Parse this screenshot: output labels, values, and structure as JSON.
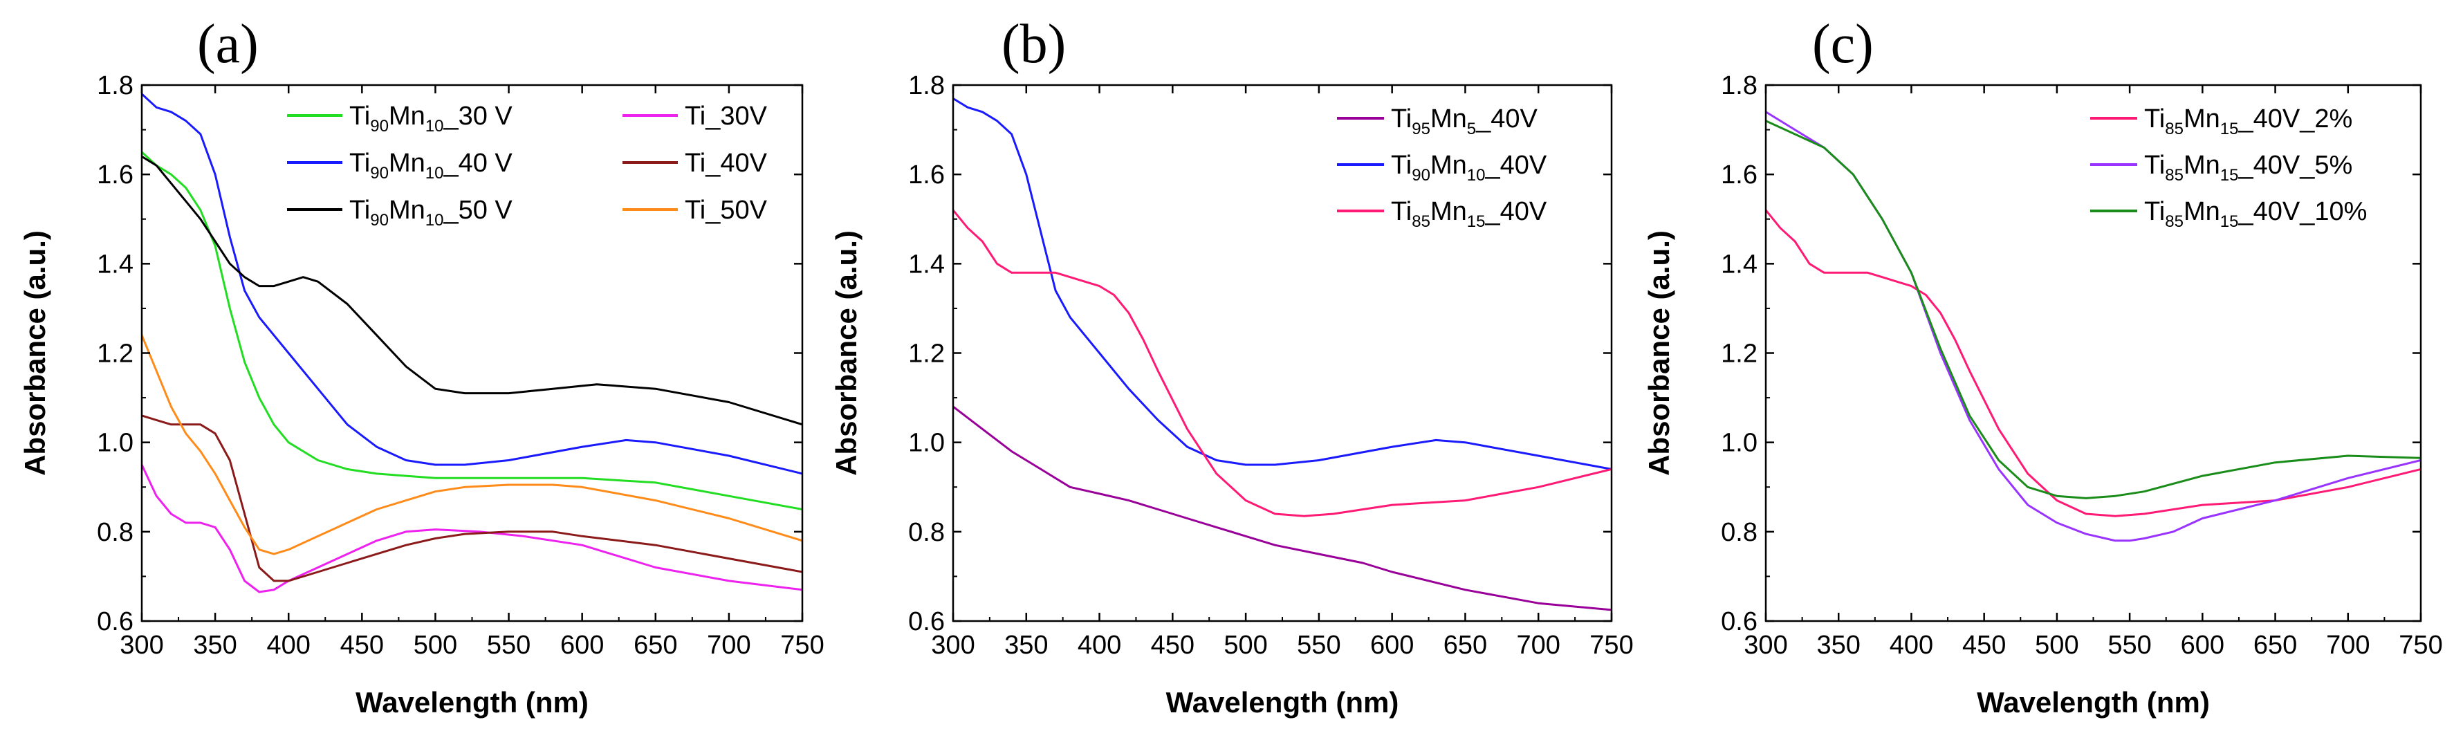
{
  "chart_data": [
    {
      "type": "line",
      "panel_label": "(a)",
      "xlabel": "Wavelength (nm)",
      "ylabel": "Absorbance (a.u.)",
      "xlim": [
        300,
        750
      ],
      "ylim": [
        0.6,
        1.8
      ],
      "xticks": [
        "300",
        "350",
        "400",
        "450",
        "500",
        "550",
        "600",
        "650",
        "700",
        "750"
      ],
      "yticks": [
        "0.6",
        "0.8",
        "1.0",
        "1.2",
        "1.4",
        "1.6",
        "1.8"
      ],
      "legend_position": "top-right, two columns",
      "series": [
        {
          "name": "Ti90Mn10_30 V",
          "legend": [
            [
              "Ti",
              ""
            ],
            [
              "90",
              "sub"
            ],
            [
              "Mn",
              ""
            ],
            [
              "10",
              "sub"
            ],
            [
              "_30 V",
              ""
            ]
          ],
          "color": "#22dd22",
          "x": [
            300,
            310,
            320,
            330,
            340,
            350,
            360,
            370,
            380,
            390,
            400,
            420,
            440,
            460,
            480,
            500,
            550,
            600,
            650,
            700,
            750
          ],
          "y": [
            1.65,
            1.62,
            1.6,
            1.57,
            1.52,
            1.44,
            1.3,
            1.18,
            1.1,
            1.04,
            1.0,
            0.96,
            0.94,
            0.93,
            0.925,
            0.92,
            0.92,
            0.92,
            0.91,
            0.88,
            0.85
          ]
        },
        {
          "name": "Ti90Mn10_40 V",
          "legend": [
            [
              "Ti",
              ""
            ],
            [
              "90",
              "sub"
            ],
            [
              "Mn",
              ""
            ],
            [
              "10",
              "sub"
            ],
            [
              "_40 V",
              ""
            ]
          ],
          "color": "#1a1aff",
          "x": [
            300,
            310,
            320,
            330,
            340,
            350,
            360,
            370,
            380,
            390,
            400,
            420,
            440,
            460,
            480,
            500,
            520,
            550,
            600,
            630,
            650,
            700,
            750
          ],
          "y": [
            1.78,
            1.75,
            1.74,
            1.72,
            1.69,
            1.6,
            1.46,
            1.34,
            1.28,
            1.24,
            1.2,
            1.12,
            1.04,
            0.99,
            0.96,
            0.95,
            0.95,
            0.96,
            0.99,
            1.005,
            1.0,
            0.97,
            0.93
          ]
        },
        {
          "name": "Ti90Mn10_50 V",
          "legend": [
            [
              "Ti",
              ""
            ],
            [
              "90",
              "sub"
            ],
            [
              "Mn",
              ""
            ],
            [
              "10",
              "sub"
            ],
            [
              "_50 V",
              ""
            ]
          ],
          "color": "#000000",
          "x": [
            300,
            310,
            320,
            330,
            340,
            350,
            360,
            370,
            380,
            390,
            400,
            410,
            420,
            440,
            460,
            480,
            500,
            520,
            550,
            580,
            610,
            650,
            700,
            750
          ],
          "y": [
            1.64,
            1.62,
            1.58,
            1.54,
            1.5,
            1.45,
            1.4,
            1.37,
            1.35,
            1.35,
            1.36,
            1.37,
            1.36,
            1.31,
            1.24,
            1.17,
            1.12,
            1.11,
            1.11,
            1.12,
            1.13,
            1.12,
            1.09,
            1.04
          ]
        },
        {
          "name": "Ti_30V",
          "legend": [
            [
              "Ti_30V",
              ""
            ]
          ],
          "color": "#ee22ee",
          "x": [
            300,
            310,
            320,
            330,
            340,
            350,
            360,
            370,
            380,
            390,
            400,
            420,
            440,
            460,
            480,
            500,
            530,
            560,
            600,
            650,
            700,
            750
          ],
          "y": [
            0.95,
            0.88,
            0.84,
            0.82,
            0.82,
            0.81,
            0.76,
            0.69,
            0.665,
            0.67,
            0.69,
            0.72,
            0.75,
            0.78,
            0.8,
            0.805,
            0.8,
            0.79,
            0.77,
            0.72,
            0.69,
            0.67
          ]
        },
        {
          "name": "Ti_40V",
          "legend": [
            [
              "Ti_40V",
              ""
            ]
          ],
          "color": "#8b1a1a",
          "x": [
            300,
            310,
            320,
            330,
            340,
            350,
            360,
            370,
            380,
            390,
            400,
            420,
            440,
            460,
            480,
            500,
            520,
            550,
            580,
            600,
            650,
            700,
            750
          ],
          "y": [
            1.06,
            1.05,
            1.04,
            1.04,
            1.04,
            1.02,
            0.96,
            0.84,
            0.72,
            0.69,
            0.69,
            0.71,
            0.73,
            0.75,
            0.77,
            0.785,
            0.795,
            0.8,
            0.8,
            0.79,
            0.77,
            0.74,
            0.71
          ]
        },
        {
          "name": "Ti_50V",
          "legend": [
            [
              "Ti_50V",
              ""
            ]
          ],
          "color": "#ff8c1a",
          "x": [
            300,
            310,
            320,
            330,
            340,
            350,
            360,
            370,
            380,
            390,
            400,
            420,
            440,
            460,
            480,
            500,
            520,
            550,
            580,
            600,
            650,
            700,
            750
          ],
          "y": [
            1.24,
            1.16,
            1.08,
            1.02,
            0.98,
            0.93,
            0.87,
            0.81,
            0.76,
            0.75,
            0.76,
            0.79,
            0.82,
            0.85,
            0.87,
            0.89,
            0.9,
            0.905,
            0.905,
            0.9,
            0.87,
            0.83,
            0.78
          ]
        }
      ]
    },
    {
      "type": "line",
      "panel_label": "(b)",
      "xlabel": "Wavelength (nm)",
      "ylabel": "Absorbance (a.u.)",
      "xlim": [
        300,
        750
      ],
      "ylim": [
        0.6,
        1.8
      ],
      "xticks": [
        "300",
        "350",
        "400",
        "450",
        "500",
        "550",
        "600",
        "650",
        "700",
        "750"
      ],
      "yticks": [
        "0.6",
        "0.8",
        "1.0",
        "1.2",
        "1.4",
        "1.6",
        "1.8"
      ],
      "legend_position": "top-right",
      "series": [
        {
          "name": "Ti95Mn5_40V",
          "legend": [
            [
              "Ti",
              ""
            ],
            [
              "95",
              "sub"
            ],
            [
              "Mn",
              ""
            ],
            [
              "5",
              "sub"
            ],
            [
              "_40V",
              ""
            ]
          ],
          "color": "#990099",
          "x": [
            300,
            320,
            340,
            360,
            380,
            400,
            420,
            440,
            460,
            480,
            500,
            520,
            550,
            580,
            600,
            650,
            700,
            750
          ],
          "y": [
            1.08,
            1.03,
            0.98,
            0.94,
            0.9,
            0.885,
            0.87,
            0.85,
            0.83,
            0.81,
            0.79,
            0.77,
            0.75,
            0.73,
            0.71,
            0.67,
            0.64,
            0.625
          ]
        },
        {
          "name": "Ti90Mn10_40V",
          "legend": [
            [
              "Ti",
              ""
            ],
            [
              "90",
              "sub"
            ],
            [
              "Mn",
              ""
            ],
            [
              "10",
              "sub"
            ],
            [
              "_40V",
              ""
            ]
          ],
          "color": "#1a1aff",
          "x": [
            300,
            310,
            320,
            330,
            340,
            350,
            360,
            370,
            380,
            390,
            400,
            420,
            440,
            460,
            480,
            500,
            520,
            550,
            600,
            630,
            650,
            700,
            750
          ],
          "y": [
            1.77,
            1.75,
            1.74,
            1.72,
            1.69,
            1.6,
            1.47,
            1.34,
            1.28,
            1.24,
            1.2,
            1.12,
            1.05,
            0.99,
            0.96,
            0.95,
            0.95,
            0.96,
            0.99,
            1.005,
            1.0,
            0.97,
            0.94
          ]
        },
        {
          "name": "Ti85Mn15_40V",
          "legend": [
            [
              "Ti",
              ""
            ],
            [
              "85",
              "sub"
            ],
            [
              "Mn",
              ""
            ],
            [
              "15",
              "sub"
            ],
            [
              "_40V",
              ""
            ]
          ],
          "color": "#ff1a75",
          "x": [
            300,
            310,
            320,
            330,
            340,
            350,
            360,
            370,
            380,
            390,
            400,
            410,
            420,
            430,
            440,
            460,
            480,
            500,
            520,
            540,
            560,
            600,
            650,
            700,
            750
          ],
          "y": [
            1.52,
            1.48,
            1.45,
            1.4,
            1.38,
            1.38,
            1.38,
            1.38,
            1.37,
            1.36,
            1.35,
            1.33,
            1.29,
            1.23,
            1.16,
            1.03,
            0.93,
            0.87,
            0.84,
            0.835,
            0.84,
            0.86,
            0.87,
            0.9,
            0.94
          ]
        }
      ]
    },
    {
      "type": "line",
      "panel_label": "(c)",
      "xlabel": "Wavelength (nm)",
      "ylabel": "Absorbance (a.u.)",
      "xlim": [
        300,
        750
      ],
      "ylim": [
        0.6,
        1.8
      ],
      "xticks": [
        "300",
        "350",
        "400",
        "450",
        "500",
        "550",
        "600",
        "650",
        "700",
        "750"
      ],
      "yticks": [
        "0.6",
        "0.8",
        "1.0",
        "1.2",
        "1.4",
        "1.6",
        "1.8"
      ],
      "legend_position": "top-right",
      "series": [
        {
          "name": "Ti85Mn15_40V_2%",
          "legend": [
            [
              "Ti",
              ""
            ],
            [
              "85",
              "sub"
            ],
            [
              "Mn",
              ""
            ],
            [
              "15",
              "sub"
            ],
            [
              "_40V_2%",
              ""
            ]
          ],
          "color": "#ff1a75",
          "x": [
            300,
            310,
            320,
            330,
            340,
            350,
            360,
            370,
            380,
            390,
            400,
            410,
            420,
            430,
            440,
            460,
            480,
            500,
            520,
            540,
            560,
            600,
            650,
            700,
            750
          ],
          "y": [
            1.52,
            1.48,
            1.45,
            1.4,
            1.38,
            1.38,
            1.38,
            1.38,
            1.37,
            1.36,
            1.35,
            1.33,
            1.29,
            1.23,
            1.16,
            1.03,
            0.93,
            0.87,
            0.84,
            0.835,
            0.84,
            0.86,
            0.87,
            0.9,
            0.94
          ]
        },
        {
          "name": "Ti85Mn15_40V_5%",
          "legend": [
            [
              "Ti",
              ""
            ],
            [
              "85",
              "sub"
            ],
            [
              "Mn",
              ""
            ],
            [
              "15",
              "sub"
            ],
            [
              "_40V_5%",
              ""
            ]
          ],
          "color": "#9933ff",
          "x": [
            300,
            320,
            340,
            360,
            380,
            400,
            420,
            440,
            460,
            480,
            500,
            520,
            540,
            550,
            560,
            580,
            600,
            650,
            700,
            750
          ],
          "y": [
            1.74,
            1.7,
            1.66,
            1.6,
            1.5,
            1.38,
            1.2,
            1.05,
            0.94,
            0.86,
            0.82,
            0.795,
            0.78,
            0.78,
            0.785,
            0.8,
            0.83,
            0.87,
            0.92,
            0.96
          ]
        },
        {
          "name": "Ti85Mn15_40V_10%",
          "legend": [
            [
              "Ti",
              ""
            ],
            [
              "85",
              "sub"
            ],
            [
              "Mn",
              ""
            ],
            [
              "15",
              "sub"
            ],
            [
              "_40V_10%",
              ""
            ]
          ],
          "color": "#1a8c1a",
          "x": [
            300,
            320,
            340,
            360,
            380,
            400,
            420,
            440,
            460,
            480,
            500,
            520,
            540,
            560,
            600,
            650,
            700,
            750
          ],
          "y": [
            1.72,
            1.69,
            1.66,
            1.6,
            1.5,
            1.38,
            1.21,
            1.06,
            0.96,
            0.9,
            0.88,
            0.875,
            0.88,
            0.89,
            0.925,
            0.955,
            0.97,
            0.965
          ]
        }
      ]
    }
  ]
}
